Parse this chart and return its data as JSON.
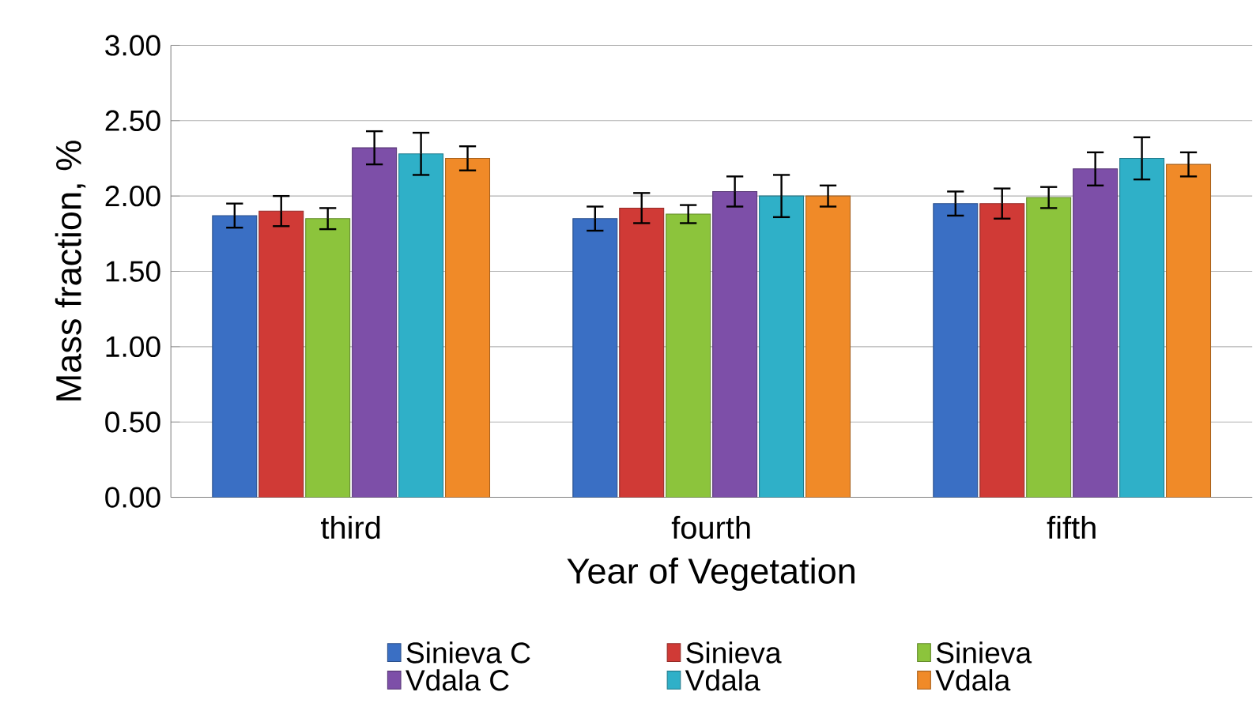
{
  "chart_data": {
    "type": "bar",
    "xlabel": "Year of Vegetation",
    "ylabel": "Mass fraction, %",
    "categories": [
      "third",
      "fourth",
      "fifth"
    ],
    "series": [
      {
        "name": "Sinieva C",
        "color": "#3a6fc4",
        "values": [
          1.87,
          1.85,
          1.95
        ],
        "errors": [
          0.08,
          0.08,
          0.08
        ]
      },
      {
        "name": "Sinieva",
        "color": "#d03a36",
        "values": [
          1.9,
          1.92,
          1.95
        ],
        "errors": [
          0.1,
          0.1,
          0.1
        ]
      },
      {
        "name": "Sinieva",
        "color": "#8cc43c",
        "values": [
          1.85,
          1.88,
          1.99
        ],
        "errors": [
          0.07,
          0.06,
          0.07
        ]
      },
      {
        "name": "Vdala C",
        "color": "#7d4fa8",
        "values": [
          2.32,
          2.03,
          2.18
        ],
        "errors": [
          0.11,
          0.1,
          0.11
        ]
      },
      {
        "name": "Vdala",
        "color": "#2fb0c8",
        "values": [
          2.28,
          2.0,
          2.25
        ],
        "errors": [
          0.14,
          0.14,
          0.14
        ]
      },
      {
        "name": "Vdala",
        "color": "#f08a28",
        "values": [
          2.25,
          2.0,
          2.21
        ],
        "errors": [
          0.08,
          0.07,
          0.08
        ]
      }
    ],
    "ylim": [
      0,
      3
    ],
    "yticks": [
      {
        "value": 0,
        "label": "0.00"
      },
      {
        "value": 0.5,
        "label": "0.50"
      },
      {
        "value": 1,
        "label": "1.00"
      },
      {
        "value": 1.5,
        "label": "1.50"
      },
      {
        "value": 2,
        "label": "2.00"
      },
      {
        "value": 2.5,
        "label": "2.50"
      },
      {
        "value": 3,
        "label": "3.00"
      }
    ],
    "grid": "y",
    "legend": "bottom"
  }
}
